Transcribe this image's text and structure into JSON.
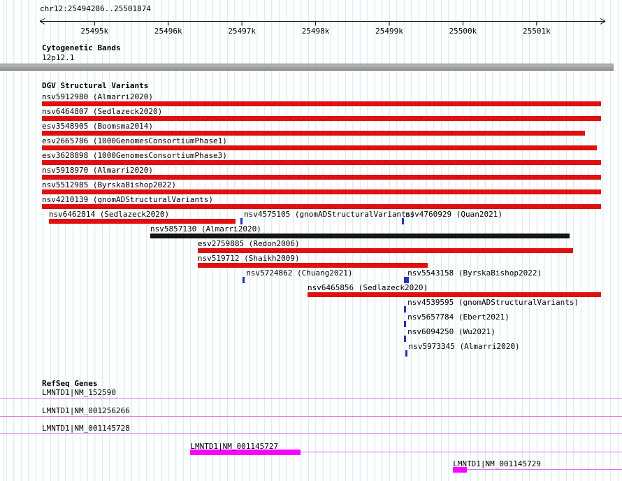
{
  "header": {
    "region_label": "chr12:25494286..25501874"
  },
  "sections": {
    "cytobands": {
      "title": "Cytogenetic Bands",
      "band_label": "12p12.1"
    },
    "variants": {
      "title": "DGV Structural Variants"
    },
    "genes": {
      "title": "RefSeq Genes"
    }
  },
  "colors": {
    "variant_red": "#e01010",
    "variant_black": "#141414",
    "variant_blue": "#2433bb",
    "gene_magenta": "#ff00ff",
    "gene_line": "#e070e0",
    "band_gray": "#949494",
    "grid": "#cdeaf0"
  },
  "chart_data": {
    "type": "genome-browser-tracks",
    "title": "DGV structural variants and RefSeq genes at chr12:25494286..25501874",
    "region": {
      "chrom": "chr12",
      "start": 25494286,
      "end": 25501874
    },
    "axis": {
      "ticks": [
        {
          "bp": 25495000,
          "label": "25495k"
        },
        {
          "bp": 25496000,
          "label": "25496k"
        },
        {
          "bp": 25497000,
          "label": "25497k"
        },
        {
          "bp": 25498000,
          "label": "25498k"
        },
        {
          "bp": 25499000,
          "label": "25499k"
        },
        {
          "bp": 25500000,
          "label": "25500k"
        },
        {
          "bp": 25501000,
          "label": "25501k"
        }
      ]
    },
    "cytoband": {
      "name": "12p12.1",
      "start": 25494286,
      "end": 25501874
    },
    "variants": [
      {
        "label": "nsv5912980 (Almarri2020)",
        "row": 0,
        "type": "bar",
        "color": "red",
        "start": 25494286,
        "end": 25501874
      },
      {
        "label": "nsv6464807 (Sedlazeck2020)",
        "row": 1,
        "type": "bar",
        "color": "red",
        "start": 25494286,
        "end": 25501874
      },
      {
        "label": "esv3548905 (Boomsma2014)",
        "row": 2,
        "type": "bar",
        "color": "red",
        "start": 25494286,
        "end": 25501660
      },
      {
        "label": "esv2665786 (1000GenomesConsortiumPhase1)",
        "row": 3,
        "type": "bar",
        "color": "red",
        "start": 25494286,
        "end": 25501820
      },
      {
        "label": "esv3628898 (1000GenomesConsortiumPhase3)",
        "row": 4,
        "type": "bar",
        "color": "red",
        "start": 25494286,
        "end": 25501874
      },
      {
        "label": "nsv5918970 (Almarri2020)",
        "row": 5,
        "type": "bar",
        "color": "red",
        "start": 25494286,
        "end": 25501874
      },
      {
        "label": "nsv5512985 (ByrskaBishop2022)",
        "row": 6,
        "type": "bar",
        "color": "red",
        "start": 25494286,
        "end": 25501874
      },
      {
        "label": "nsv4210139 (gnomADStructuralVariants)",
        "row": 7,
        "type": "bar",
        "color": "red",
        "start": 25494286,
        "end": 25501874
      },
      {
        "label": "nsv6462814 (Sedlazeck2020)",
        "row": 8,
        "type": "bar",
        "color": "red",
        "start": 25494380,
        "end": 25496910
      },
      {
        "label": "nsv4575105 (gnomADStructuralVariants)",
        "row": 8,
        "type": "point",
        "pos": 25496980
      },
      {
        "label": "nsv4760929 (Quan2021)",
        "row": 8,
        "type": "point",
        "pos": 25499170
      },
      {
        "label": "nsv5857130 (Almarri2020)",
        "row": 9,
        "type": "bar",
        "color": "black",
        "start": 25495756,
        "end": 25501447
      },
      {
        "label": "esv2759885 (Redon2006)",
        "row": 10,
        "type": "bar",
        "color": "red",
        "start": 25496400,
        "end": 25501495
      },
      {
        "label": "nsv519712 (Shaikh2009)",
        "row": 11,
        "type": "bar",
        "color": "red",
        "start": 25496400,
        "end": 25499520
      },
      {
        "label": "nsv5724862 (Chuang2021)",
        "row": 12,
        "type": "point",
        "pos": 25497010
      },
      {
        "label": "nsv5543158 (ByrskaBishop2022)",
        "row": 12,
        "type": "point",
        "pos": 25499200,
        "wide": true
      },
      {
        "label": "nsv6465856 (Sedlazeck2020)",
        "row": 13,
        "type": "bar",
        "color": "red",
        "start": 25497890,
        "end": 25501874
      },
      {
        "label": "nsv4539595 (gnomADStructuralVariants)",
        "row": 14,
        "type": "point",
        "pos": 25499200
      },
      {
        "label": "nsv5657784 (Ebert2021)",
        "row": 15,
        "type": "point",
        "pos": 25499200
      },
      {
        "label": "nsv6094250 (Wu2021)",
        "row": 16,
        "type": "point",
        "pos": 25499200
      },
      {
        "label": "nsv5973345 (Almarri2020)",
        "row": 17,
        "type": "point",
        "pos": 25499215
      }
    ],
    "genes": [
      {
        "label": "LMNTD1|NM_152590",
        "row": 0,
        "line": "full"
      },
      {
        "label": "LMNTD1|NM_001256266",
        "row": 1,
        "line": "full"
      },
      {
        "label": "LMNTD1|NM_001145728",
        "row": 2,
        "line": "full"
      },
      {
        "label": "LMNTD1|NM_001145727",
        "row": 3,
        "line": "right",
        "exon_start": 25496300,
        "exon_end": 25497795
      },
      {
        "label": "LMNTD1|NM_001145729",
        "row": 4,
        "line": "right",
        "exon_start": 25499865,
        "exon_end": 25500055
      }
    ]
  }
}
